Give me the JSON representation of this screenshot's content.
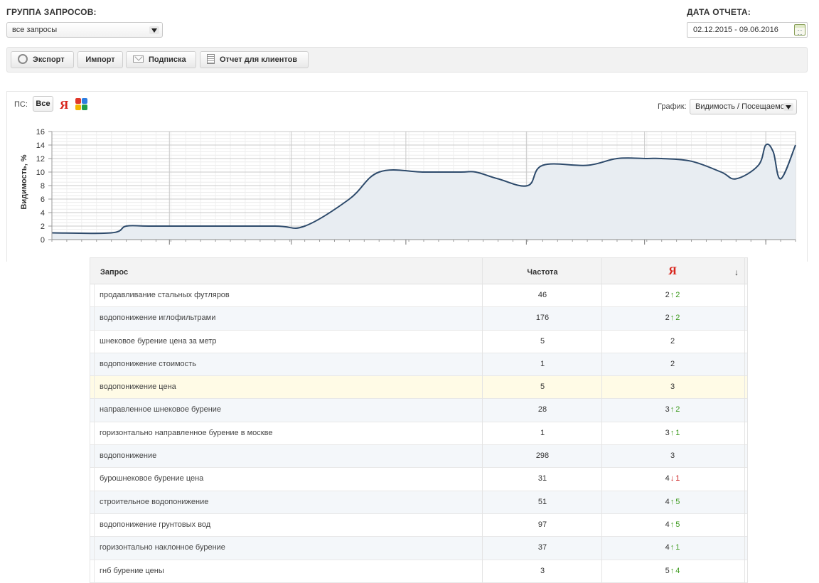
{
  "filters": {
    "group_label": "ГРУППА ЗАПРОСОВ:",
    "group_value": "все запросы",
    "date_label": "ДАТА ОТЧЕТА:",
    "date_value": "02.12.2015 - 09.06.2016"
  },
  "toolbar": {
    "export_label": "Экспорт",
    "import_label": "Импорт",
    "subscribe_label": "Подписка",
    "client_report_label": "Отчет для клиентов"
  },
  "chart_panel": {
    "ps_label": "ПС:",
    "ps_all_label": "Все",
    "yandex_label": "Я",
    "graph_label": "График:",
    "graph_value": "Видимость / Посещаемо"
  },
  "chart_data": {
    "type": "area",
    "ylabel": "Видимость, %",
    "xlabel": "",
    "ylim": [
      0,
      16
    ],
    "y_ticks": [
      0,
      2,
      4,
      6,
      8,
      10,
      12,
      14,
      16
    ],
    "grid": true,
    "x": [
      0,
      8,
      10,
      13,
      20,
      30,
      34,
      40,
      44,
      50,
      55,
      57,
      60,
      64,
      66,
      72,
      76,
      80,
      82,
      86,
      90,
      92,
      95,
      96,
      97,
      98,
      100
    ],
    "values": [
      1,
      1,
      2,
      2,
      2,
      2,
      2,
      6,
      10,
      10,
      10,
      10,
      9,
      8,
      11,
      11,
      12,
      12,
      12,
      11.6,
      10,
      9,
      11,
      14,
      13,
      9,
      14
    ],
    "color": "#2d4a6b",
    "fill": "#e8edf2"
  },
  "table": {
    "headers": {
      "query": "Запрос",
      "frequency": "Частота",
      "yandex": "Я",
      "sort": "↓"
    },
    "rows": [
      {
        "query": "продавливание стальных футляров",
        "freq": "46",
        "pos": "2",
        "arrow": "↑",
        "delta": "2",
        "dir": "up"
      },
      {
        "query": "водопонижение иглофильтрами",
        "freq": "176",
        "pos": "2",
        "arrow": "↑",
        "delta": "2",
        "dir": "up"
      },
      {
        "query": "шнековое бурение цена за метр",
        "freq": "5",
        "pos": "2",
        "arrow": "",
        "delta": "",
        "dir": ""
      },
      {
        "query": "водопонижение стоимость",
        "freq": "1",
        "pos": "2",
        "arrow": "",
        "delta": "",
        "dir": ""
      },
      {
        "query": "водопонижение цена",
        "freq": "5",
        "pos": "3",
        "arrow": "",
        "delta": "",
        "dir": ""
      },
      {
        "query": "направленное шнековое бурение",
        "freq": "28",
        "pos": "3",
        "arrow": "↑",
        "delta": "2",
        "dir": "up"
      },
      {
        "query": "горизонтально направленное бурение в москве",
        "freq": "1",
        "pos": "3",
        "arrow": "↑",
        "delta": "1",
        "dir": "up"
      },
      {
        "query": "водопонижение",
        "freq": "298",
        "pos": "3",
        "arrow": "",
        "delta": "",
        "dir": ""
      },
      {
        "query": "бурошнековое бурение цена",
        "freq": "31",
        "pos": "4",
        "arrow": "↓",
        "delta": "1",
        "dir": "down"
      },
      {
        "query": "строительное водопонижение",
        "freq": "51",
        "pos": "4",
        "arrow": "↑",
        "delta": "5",
        "dir": "up"
      },
      {
        "query": "водопонижение грунтовых вод",
        "freq": "97",
        "pos": "4",
        "arrow": "↑",
        "delta": "5",
        "dir": "up"
      },
      {
        "query": "горизонтально наклонное бурение",
        "freq": "37",
        "pos": "4",
        "arrow": "↑",
        "delta": "1",
        "dir": "up"
      },
      {
        "query": "гнб бурение цены",
        "freq": "3",
        "pos": "5",
        "arrow": "↑",
        "delta": "4",
        "dir": "up"
      }
    ]
  }
}
